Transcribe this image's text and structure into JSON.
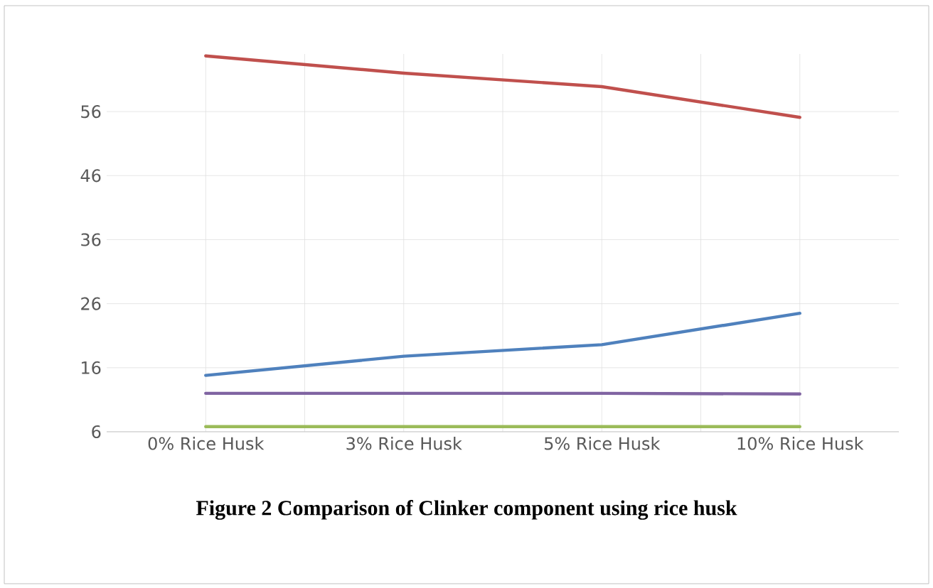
{
  "chart_data": {
    "type": "line",
    "title": "Figure 2 Comparison of Clinker component using rice husk",
    "categories": [
      "0% Rice Husk",
      "3% Rice Husk",
      "5% Rice Husk",
      "10% Rice Husk"
    ],
    "series": [
      {
        "color": "#c0504d",
        "values": [
          64.7,
          62.0,
          59.9,
          55.1
        ]
      },
      {
        "color": "#4f81bd",
        "values": [
          14.8,
          17.8,
          19.6,
          24.5
        ]
      },
      {
        "color": "#8064a2",
        "values": [
          12.0,
          12.0,
          12.0,
          11.9
        ]
      },
      {
        "color": "#9bbb59",
        "values": [
          6.8,
          6.8,
          6.8,
          6.8
        ]
      }
    ],
    "ylim": [
      6,
      65
    ],
    "yticks": [
      6,
      16,
      26,
      36,
      46,
      56
    ],
    "grid": true,
    "marker": "none",
    "line_style": "solid"
  }
}
